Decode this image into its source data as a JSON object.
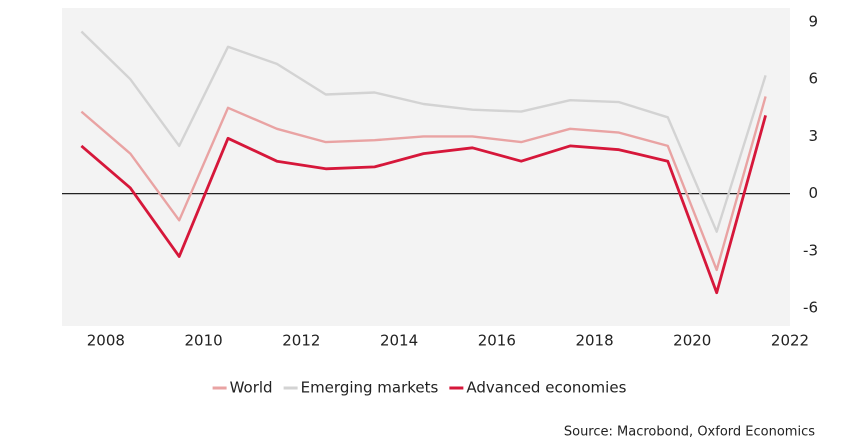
{
  "chart_data": {
    "type": "line",
    "x": [
      2007.5,
      2008.5,
      2009.5,
      2010.5,
      2011.5,
      2012.5,
      2013.5,
      2014.5,
      2015.5,
      2016.5,
      2017.5,
      2018.5,
      2019.5,
      2020.5,
      2021.5
    ],
    "series": [
      {
        "name": "World",
        "color": "#e9a3a3",
        "values": [
          4.3,
          2.1,
          -1.4,
          4.5,
          3.4,
          2.7,
          2.8,
          3.0,
          3.0,
          2.7,
          3.4,
          3.2,
          2.5,
          -4.0,
          5.1
        ]
      },
      {
        "name": "Emerging markets",
        "color": "#d3d3d3",
        "values": [
          8.5,
          6.0,
          2.5,
          7.7,
          6.8,
          5.2,
          5.3,
          4.7,
          4.4,
          4.3,
          4.9,
          4.8,
          4.0,
          -2.0,
          6.2
        ]
      },
      {
        "name": "Advanced economies",
        "color": "#d6173a",
        "values": [
          2.5,
          0.3,
          -3.3,
          2.9,
          1.7,
          1.3,
          1.4,
          2.1,
          2.4,
          1.7,
          2.5,
          2.3,
          1.7,
          -5.2,
          4.1
        ]
      }
    ],
    "xlim": [
      2007,
      2022
    ],
    "xticks": [
      2008,
      2010,
      2012,
      2014,
      2016,
      2018,
      2020,
      2022
    ],
    "ylim": [
      -6,
      9
    ],
    "yticks": [
      -6,
      -3,
      0,
      3,
      6,
      9
    ],
    "y_axis_side": "right",
    "legend": "bottom",
    "source": "Source: Macrobond, Oxford Economics"
  }
}
